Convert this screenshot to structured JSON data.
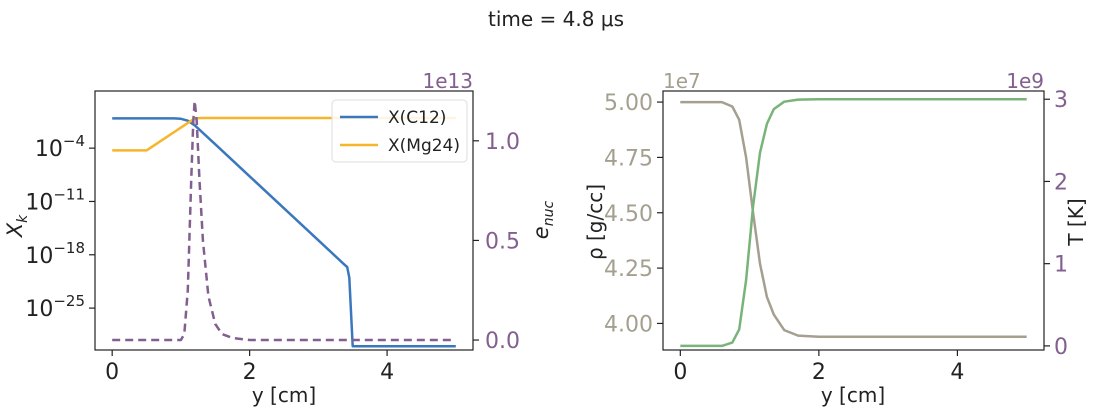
{
  "figure": {
    "suptitle": "time = 4.8 $\\mu$s",
    "suptitle_display": "time = 4.8 μs"
  },
  "colors": {
    "c12": "#3a78bd",
    "mg24": "#f7b52c",
    "enuc": "#825f8f",
    "rho": "#a49f8f",
    "temp": "#78b47a",
    "axis": "#222222"
  },
  "chart_data": [
    {
      "type": "line",
      "xlabel": "y [cm]",
      "ylabel_left": "X_k",
      "ylabel_right": "e_nuc",
      "right_axis_offset_label": "1e13",
      "xlim": [
        -0.25,
        5.25
      ],
      "xticks": [
        0,
        2,
        4
      ],
      "ylim_left_log10": [
        -30.5,
        3.5
      ],
      "yscale_left": "log",
      "yticks_left_exponents": [
        -4,
        -11,
        -18,
        -25
      ],
      "ylim_right": [
        -0.05,
        1.25
      ],
      "yticks_right": [
        0.0,
        0.5,
        1.0
      ],
      "legend": {
        "position": "top-right",
        "entries": [
          "X(C12)",
          "X(Mg24)"
        ]
      },
      "series": [
        {
          "name": "X(C12)",
          "axis": "left",
          "style": "solid",
          "color_key": "c12",
          "x": [
            0,
            0.9,
            1.0,
            1.1,
            1.2,
            1.5,
            2.0,
            2.5,
            3.0,
            3.38,
            3.42,
            3.45,
            3.5,
            5.0
          ],
          "log10_y": [
            -0.1,
            -0.1,
            -0.15,
            -0.4,
            -1.0,
            -3.5,
            -7.7,
            -11.9,
            -16.1,
            -19.3,
            -19.6,
            -21,
            -30,
            -30
          ]
        },
        {
          "name": "X(Mg24)",
          "axis": "left",
          "style": "solid",
          "color_key": "mg24",
          "x": [
            0,
            0.5,
            1.0,
            1.2,
            1.3,
            5.0
          ],
          "log10_y": [
            -4.3,
            -4.3,
            -1.3,
            -0.1,
            -0.05,
            -0.05
          ]
        },
        {
          "name": "e_nuc",
          "axis": "right",
          "style": "dashed",
          "color_key": "enuc",
          "x": [
            0,
            1.0,
            1.05,
            1.1,
            1.15,
            1.18,
            1.2,
            1.23,
            1.27,
            1.32,
            1.4,
            1.5,
            1.6,
            1.75,
            2.0,
            5.0
          ],
          "y": [
            0,
            0,
            0.03,
            0.25,
            0.8,
            1.1,
            1.2,
            1.1,
            0.8,
            0.5,
            0.22,
            0.08,
            0.03,
            0.01,
            0,
            0
          ]
        }
      ]
    },
    {
      "type": "line",
      "xlabel": "y [cm]",
      "ylabel_left": "ρ [g/cc]",
      "ylabel_right": "T [K]",
      "left_axis_offset_label": "1e7",
      "right_axis_offset_label": "1e9",
      "xlim": [
        -0.25,
        5.25
      ],
      "xticks": [
        0,
        2,
        4
      ],
      "ylim_left": [
        3.88,
        5.05
      ],
      "yticks_left": [
        4.0,
        4.25,
        4.5,
        4.75,
        5.0
      ],
      "yticks_left_labels": [
        "4.00",
        "4.25",
        "4.50",
        "4.75",
        "5.00"
      ],
      "ylim_right": [
        -0.05,
        3.1
      ],
      "yticks_right": [
        0,
        1,
        2,
        3
      ],
      "series": [
        {
          "name": "rho",
          "axis": "left",
          "color_key": "rho",
          "x": [
            0,
            0.6,
            0.75,
            0.85,
            0.95,
            1.05,
            1.15,
            1.25,
            1.35,
            1.5,
            1.7,
            2.0,
            5.0
          ],
          "y": [
            5.0,
            5.0,
            4.98,
            4.92,
            4.75,
            4.5,
            4.27,
            4.12,
            4.04,
            3.97,
            3.945,
            3.94,
            3.94
          ]
        },
        {
          "name": "T",
          "axis": "right",
          "color_key": "temp",
          "x": [
            0,
            0.6,
            0.75,
            0.85,
            0.95,
            1.05,
            1.15,
            1.25,
            1.35,
            1.5,
            1.7,
            2.0,
            5.0
          ],
          "y": [
            0,
            0,
            0.04,
            0.2,
            0.8,
            1.7,
            2.35,
            2.7,
            2.88,
            2.97,
            2.995,
            3.0,
            3.0
          ]
        }
      ]
    }
  ]
}
